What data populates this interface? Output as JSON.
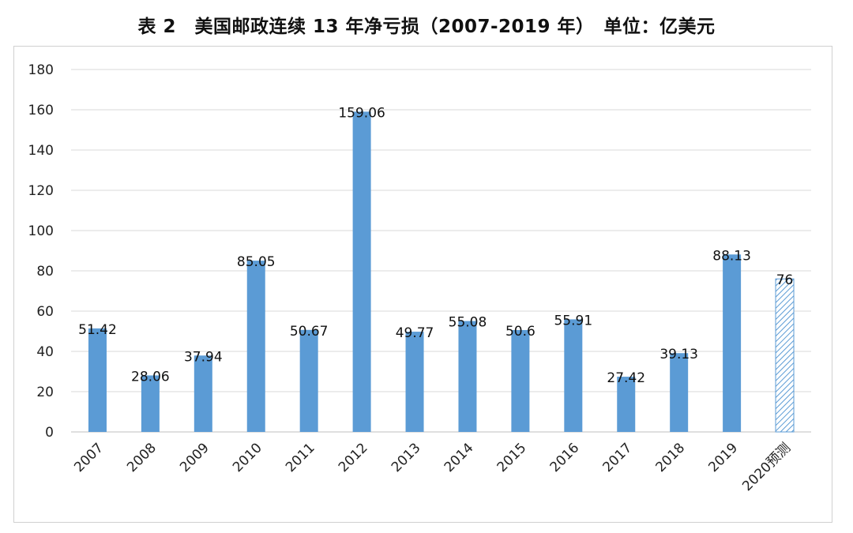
{
  "chart_data": {
    "type": "bar",
    "title": "表 2　美国邮政连续 13 年净亏损（2007-2019 年）　单位：亿美元",
    "categories": [
      "2007",
      "2008",
      "2009",
      "2010",
      "2011",
      "2012",
      "2013",
      "2014",
      "2015",
      "2016",
      "2017",
      "2018",
      "2019",
      "2020预测"
    ],
    "values": [
      51.42,
      28.06,
      37.94,
      85.05,
      50.67,
      159.06,
      49.77,
      55.08,
      50.6,
      55.91,
      27.42,
      39.13,
      88.13,
      76
    ],
    "data_labels": [
      "51.42",
      "28.06",
      "37.94",
      "85.05",
      "50.67",
      "159.06",
      "49.77",
      "55.08",
      "50.6",
      "55.91",
      "27.42",
      "39.13",
      "88.13",
      "76"
    ],
    "y_ticks": [
      "0",
      "20",
      "40",
      "60",
      "80",
      "100",
      "120",
      "140",
      "160",
      "180"
    ],
    "ylim": [
      0,
      180
    ],
    "xlabel": "",
    "ylabel": "",
    "grid": true,
    "forecast_index": 13,
    "colors": {
      "bar": "#5b9bd5",
      "forecast": "#5b9bd5",
      "grid": "#d9d9d9"
    }
  }
}
